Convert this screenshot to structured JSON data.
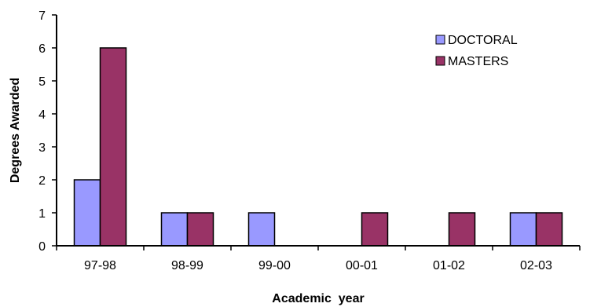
{
  "chart_data": {
    "type": "bar",
    "title": "",
    "xlabel": "Academic  year",
    "ylabel": "Degrees Awarded",
    "categories": [
      "97-98",
      "98-99",
      "99-00",
      "00-01",
      "01-02",
      "02-03"
    ],
    "series": [
      {
        "name": "DOCTORAL",
        "values": [
          2,
          1,
          1,
          0,
          0,
          1
        ],
        "color": "#9999ff"
      },
      {
        "name": "MASTERS",
        "values": [
          6,
          1,
          0,
          1,
          1,
          1
        ],
        "color": "#993366"
      }
    ],
    "ylim": [
      0,
      7
    ],
    "yticks": [
      "0",
      "1",
      "2",
      "3",
      "4",
      "5",
      "6",
      "7"
    ],
    "grid": false,
    "legend_position": "top-right"
  }
}
